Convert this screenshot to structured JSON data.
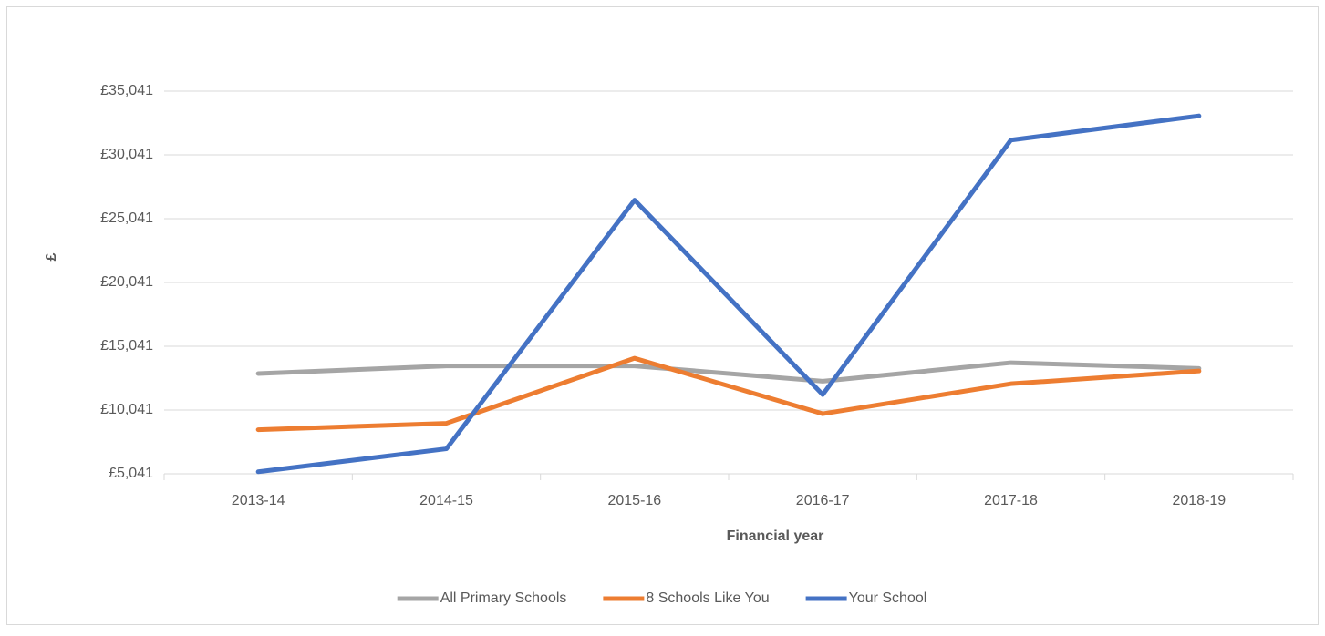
{
  "chart_data": {
    "type": "line",
    "x_label": "Financial year",
    "y_label": "£",
    "categories": [
      "2013-14",
      "2014-15",
      "2015-16",
      "2016-17",
      "2017-18",
      "2018-19"
    ],
    "series": [
      {
        "name": "All Primary Schools",
        "color": "#a5a5a5",
        "values": [
          12900,
          13500,
          13500,
          12300,
          13750,
          13300
        ]
      },
      {
        "name": "8 Schools Like You",
        "color": "#ed7d31",
        "values": [
          8500,
          9000,
          14100,
          9750,
          12100,
          13100
        ]
      },
      {
        "name": "Your School",
        "color": "#4472c4",
        "values": [
          5200,
          7000,
          26500,
          11250,
          31200,
          33100
        ]
      }
    ],
    "ylim": [
      5041,
      35041
    ],
    "yticks": [
      {
        "value": 5041,
        "label": "£5,041"
      },
      {
        "value": 10041,
        "label": "£10,041"
      },
      {
        "value": 15041,
        "label": "£15,041"
      },
      {
        "value": 20041,
        "label": "£20,041"
      },
      {
        "value": 25041,
        "label": "£25,041"
      },
      {
        "value": 30041,
        "label": "£30,041"
      },
      {
        "value": 35041,
        "label": "£35,041"
      }
    ],
    "grid": true,
    "legend": "bottom"
  }
}
